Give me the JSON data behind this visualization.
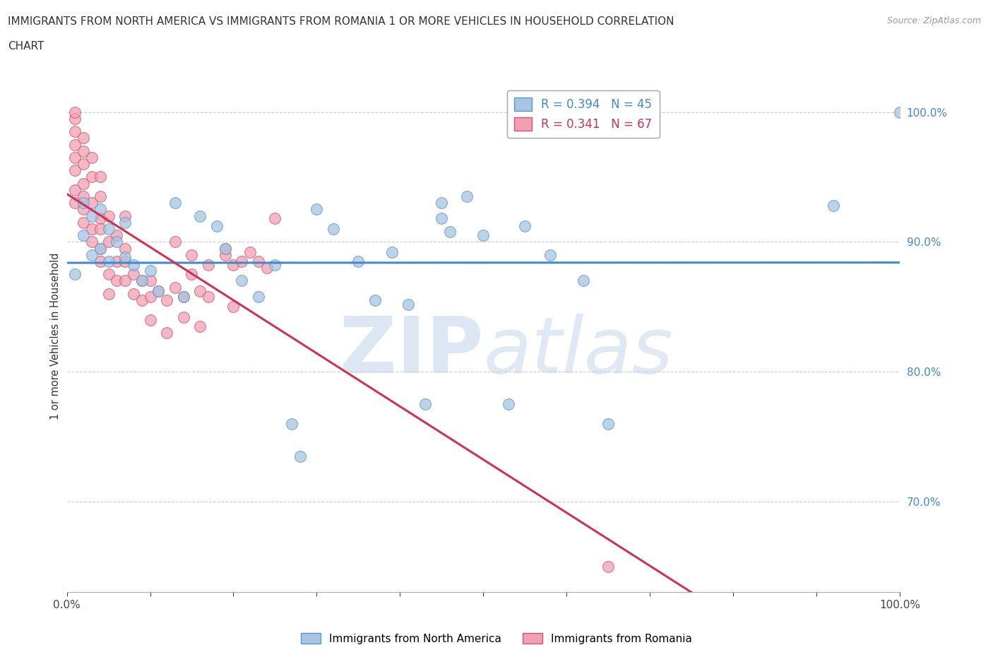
{
  "title_line1": "IMMIGRANTS FROM NORTH AMERICA VS IMMIGRANTS FROM ROMANIA 1 OR MORE VEHICLES IN HOUSEHOLD CORRELATION",
  "title_line2": "CHART",
  "source": "Source: ZipAtlas.com",
  "ylabel": "1 or more Vehicles in Household",
  "xmin": 0.0,
  "xmax": 1.0,
  "ymin": 0.63,
  "ymax": 1.025,
  "yticks": [
    0.7,
    0.8,
    0.9,
    1.0
  ],
  "ytick_labels": [
    "70.0%",
    "80.0%",
    "90.0%",
    "100.0%"
  ],
  "xticks": [
    0.0,
    0.1,
    0.2,
    0.3,
    0.4,
    0.5,
    0.6,
    0.7,
    0.8,
    0.9,
    1.0
  ],
  "xtick_labels": [
    "0.0%",
    "",
    "",
    "",
    "",
    "",
    "",
    "",
    "",
    "",
    "100.0%"
  ],
  "north_america_color": "#a8c4e0",
  "romania_color": "#f0a0b0",
  "north_america_edge_color": "#5599cc",
  "romania_edge_color": "#cc5577",
  "north_america_line_color": "#4488cc",
  "romania_line_color": "#cc3355",
  "R_north_america": 0.394,
  "N_north_america": 45,
  "R_romania": 0.341,
  "N_romania": 67,
  "watermark_zip": "ZIP",
  "watermark_atlas": "atlas",
  "north_america_x": [
    0.01,
    0.02,
    0.02,
    0.03,
    0.03,
    0.04,
    0.04,
    0.05,
    0.05,
    0.06,
    0.07,
    0.07,
    0.08,
    0.09,
    0.1,
    0.11,
    0.13,
    0.14,
    0.16,
    0.18,
    0.19,
    0.21,
    0.23,
    0.25,
    0.27,
    0.28,
    0.3,
    0.32,
    0.35,
    0.37,
    0.39,
    0.41,
    0.43,
    0.45,
    0.45,
    0.46,
    0.48,
    0.5,
    0.53,
    0.55,
    0.58,
    0.62,
    0.65,
    0.92,
    1.0
  ],
  "north_america_y": [
    0.875,
    0.905,
    0.93,
    0.89,
    0.92,
    0.895,
    0.925,
    0.885,
    0.91,
    0.9,
    0.888,
    0.915,
    0.882,
    0.87,
    0.878,
    0.862,
    0.93,
    0.858,
    0.92,
    0.912,
    0.895,
    0.87,
    0.858,
    0.882,
    0.76,
    0.735,
    0.925,
    0.91,
    0.885,
    0.855,
    0.892,
    0.852,
    0.775,
    0.93,
    0.918,
    0.908,
    0.935,
    0.905,
    0.775,
    0.912,
    0.89,
    0.87,
    0.76,
    0.928,
    1.0
  ],
  "romania_x": [
    0.01,
    0.01,
    0.01,
    0.01,
    0.01,
    0.01,
    0.01,
    0.01,
    0.02,
    0.02,
    0.02,
    0.02,
    0.02,
    0.02,
    0.02,
    0.03,
    0.03,
    0.03,
    0.03,
    0.03,
    0.04,
    0.04,
    0.04,
    0.04,
    0.04,
    0.04,
    0.05,
    0.05,
    0.05,
    0.05,
    0.06,
    0.06,
    0.06,
    0.07,
    0.07,
    0.07,
    0.08,
    0.08,
    0.09,
    0.09,
    0.1,
    0.1,
    0.11,
    0.12,
    0.13,
    0.14,
    0.15,
    0.16,
    0.17,
    0.19,
    0.2,
    0.22,
    0.23,
    0.24,
    0.25,
    0.13,
    0.15,
    0.17,
    0.19,
    0.21,
    0.1,
    0.12,
    0.14,
    0.16,
    0.2,
    0.07,
    0.65
  ],
  "romania_y": [
    0.955,
    0.965,
    0.975,
    0.985,
    0.995,
    1.0,
    0.94,
    0.93,
    0.945,
    0.96,
    0.97,
    0.98,
    0.935,
    0.925,
    0.915,
    0.93,
    0.95,
    0.965,
    0.91,
    0.9,
    0.918,
    0.935,
    0.95,
    0.895,
    0.91,
    0.885,
    0.9,
    0.92,
    0.875,
    0.86,
    0.885,
    0.905,
    0.87,
    0.885,
    0.87,
    0.895,
    0.875,
    0.86,
    0.87,
    0.855,
    0.87,
    0.858,
    0.862,
    0.855,
    0.865,
    0.858,
    0.875,
    0.862,
    0.858,
    0.89,
    0.882,
    0.892,
    0.885,
    0.88,
    0.918,
    0.9,
    0.89,
    0.882,
    0.895,
    0.885,
    0.84,
    0.83,
    0.842,
    0.835,
    0.85,
    0.92,
    0.65
  ]
}
